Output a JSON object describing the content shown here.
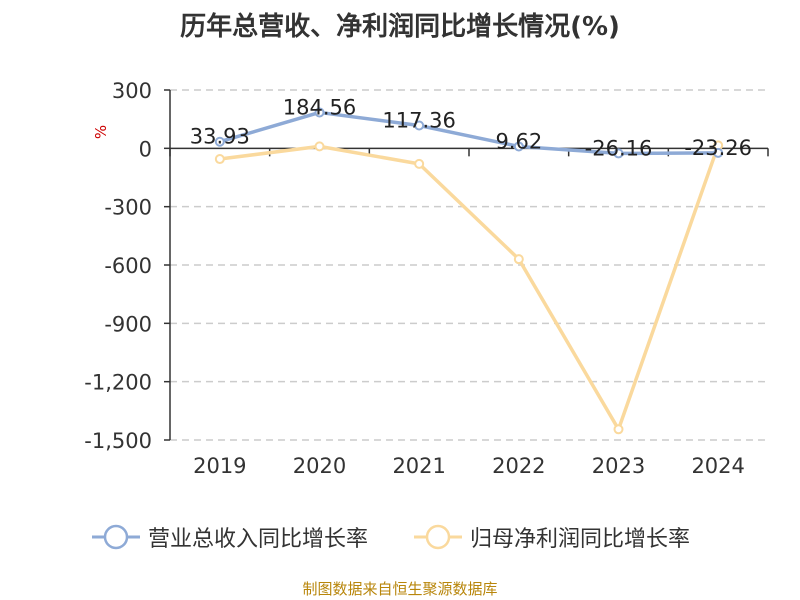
{
  "title": "历年总营收、净利润同比增长情况(%)",
  "footer": {
    "source": "制图数据来自恒生聚源数据库"
  },
  "colors": {
    "revenue": "#8eaad6",
    "profit": "#fad99d",
    "grid": "#cccccc",
    "axis": "#333333",
    "y_unit": "#cc0000"
  },
  "chart_data": {
    "type": "line",
    "title": "历年总营收、净利润同比增长情况(%)",
    "categories": [
      "2019",
      "2020",
      "2021",
      "2022",
      "2023",
      "2024"
    ],
    "y_unit": "%",
    "ylim": [
      -1500,
      300
    ],
    "y_ticks": [
      300,
      0,
      -300,
      -600,
      -900,
      -1200,
      -1500
    ],
    "y_tick_labels": [
      "300",
      "0",
      "-300",
      "-600",
      "-900",
      "-1,200",
      "-1,500"
    ],
    "grid": true,
    "legend_position": "bottom",
    "series": [
      {
        "name": "营业总收入同比增长率",
        "values": [
          33.93,
          184.56,
          117.36,
          9.62,
          -26.16,
          -23.26
        ],
        "labels": [
          "33.93",
          "184.56",
          "117.36",
          "9.62",
          "-26.16",
          "-23.26"
        ]
      },
      {
        "name": "归母净利润同比增长率",
        "values": [
          -55,
          10,
          -80,
          -570,
          -1445,
          15
        ]
      }
    ]
  }
}
